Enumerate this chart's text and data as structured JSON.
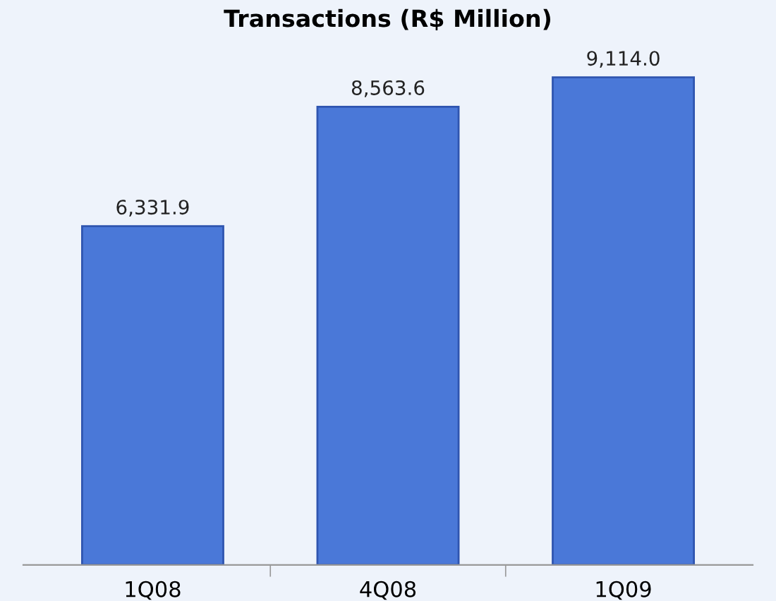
{
  "chart_data": {
    "type": "bar",
    "title": "Transactions (R$ Million)",
    "categories": [
      "1Q08",
      "4Q08",
      "1Q09"
    ],
    "values": [
      6331.9,
      8563.6,
      9114.0
    ],
    "value_labels": [
      "6,331.9",
      "8,563.6",
      "9,114.0"
    ],
    "color": "#4a78d8"
  }
}
